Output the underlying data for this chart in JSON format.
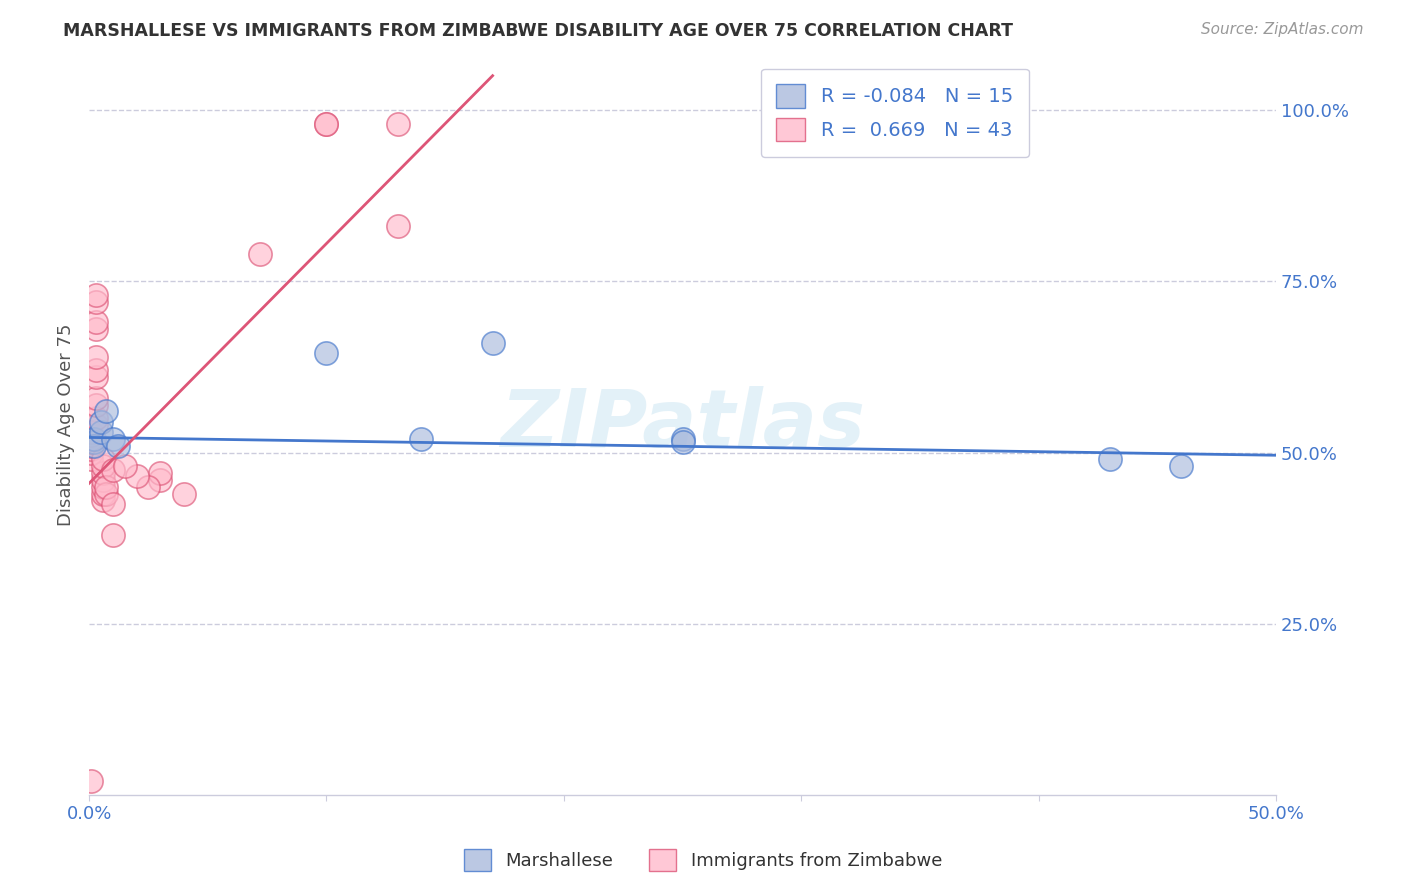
{
  "title": "MARSHALLESE VS IMMIGRANTS FROM ZIMBABWE DISABILITY AGE OVER 75 CORRELATION CHART",
  "source": "Source: ZipAtlas.com",
  "ylabel": "Disability Age Over 75",
  "xlim": [
    0.0,
    0.5
  ],
  "ylim": [
    0.0,
    1.08
  ],
  "xticks": [
    0.0,
    0.1,
    0.2,
    0.3,
    0.4,
    0.5
  ],
  "xtick_labels": [
    "0.0%",
    "",
    "",
    "",
    "",
    "50.0%"
  ],
  "ytick_labels_right": [
    "100.0%",
    "75.0%",
    "50.0%",
    "25.0%"
  ],
  "ytick_vals_right": [
    1.0,
    0.75,
    0.5,
    0.25
  ],
  "legend_r_blue": "-0.084",
  "legend_n_blue": "15",
  "legend_r_pink": "0.669",
  "legend_n_pink": "43",
  "watermark": "ZIPatlas",
  "blue_color": "#AABBDD",
  "pink_color": "#FFBBCC",
  "trendline_blue_color": "#4477CC",
  "trendline_pink_color": "#DD5577",
  "blue_scatter": [
    [
      0.002,
      0.515
    ],
    [
      0.002,
      0.52
    ],
    [
      0.002,
      0.51
    ],
    [
      0.005,
      0.53
    ],
    [
      0.005,
      0.545
    ],
    [
      0.007,
      0.56
    ],
    [
      0.01,
      0.52
    ],
    [
      0.012,
      0.51
    ],
    [
      0.1,
      0.645
    ],
    [
      0.14,
      0.52
    ],
    [
      0.17,
      0.66
    ],
    [
      0.25,
      0.52
    ],
    [
      0.25,
      0.515
    ],
    [
      0.43,
      0.49
    ],
    [
      0.46,
      0.48
    ]
  ],
  "pink_scatter": [
    [
      0.001,
      0.02
    ],
    [
      0.001,
      0.49
    ],
    [
      0.001,
      0.5
    ],
    [
      0.001,
      0.505
    ],
    [
      0.001,
      0.51
    ],
    [
      0.001,
      0.515
    ],
    [
      0.001,
      0.52
    ],
    [
      0.001,
      0.525
    ],
    [
      0.001,
      0.53
    ],
    [
      0.003,
      0.54
    ],
    [
      0.003,
      0.55
    ],
    [
      0.003,
      0.57
    ],
    [
      0.003,
      0.58
    ],
    [
      0.003,
      0.61
    ],
    [
      0.003,
      0.62
    ],
    [
      0.003,
      0.64
    ],
    [
      0.003,
      0.68
    ],
    [
      0.003,
      0.69
    ],
    [
      0.003,
      0.72
    ],
    [
      0.003,
      0.73
    ],
    [
      0.006,
      0.43
    ],
    [
      0.006,
      0.44
    ],
    [
      0.006,
      0.45
    ],
    [
      0.006,
      0.46
    ],
    [
      0.006,
      0.47
    ],
    [
      0.006,
      0.48
    ],
    [
      0.006,
      0.49
    ],
    [
      0.007,
      0.44
    ],
    [
      0.007,
      0.45
    ],
    [
      0.01,
      0.38
    ],
    [
      0.01,
      0.425
    ],
    [
      0.01,
      0.475
    ],
    [
      0.04,
      0.44
    ],
    [
      0.072,
      0.79
    ],
    [
      0.1,
      0.98
    ],
    [
      0.1,
      0.98
    ],
    [
      0.13,
      0.98
    ],
    [
      0.13,
      0.83
    ],
    [
      0.03,
      0.46
    ],
    [
      0.03,
      0.47
    ],
    [
      0.025,
      0.45
    ],
    [
      0.02,
      0.465
    ],
    [
      0.015,
      0.48
    ]
  ],
  "blue_trend_x": [
    0.0,
    0.5
  ],
  "blue_trend_y": [
    0.522,
    0.496
  ],
  "pink_trend_x": [
    -0.01,
    0.17
  ],
  "pink_trend_y": [
    0.42,
    1.05
  ]
}
